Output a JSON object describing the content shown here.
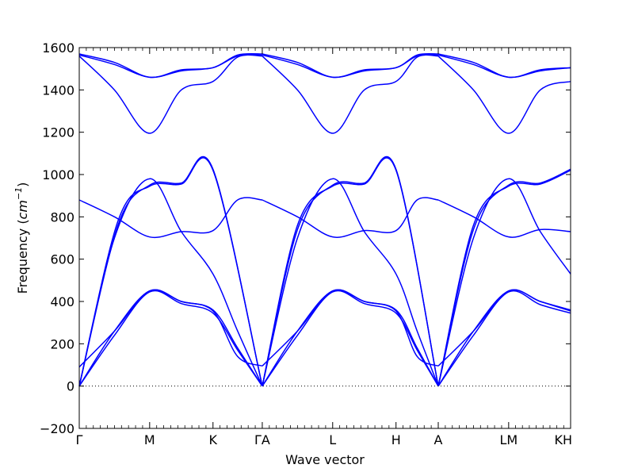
{
  "chart_data": {
    "type": "line",
    "title": "",
    "xlabel": "Wave vector",
    "ylabel_text": "Frequency (",
    "ylabel_unit": "cm",
    "ylabel_exp": "−1",
    "ylabel_close": ")",
    "ylim": [
      -200,
      1600
    ],
    "y_ticks": [
      -200,
      0,
      200,
      400,
      600,
      800,
      1000,
      1200,
      1400,
      1600
    ],
    "zero_line": {
      "value": 0,
      "style": "dotted"
    },
    "xlim": [
      0,
      6.98
    ],
    "high_symmetry_points": [
      {
        "label": "Γ",
        "x": 0
      },
      {
        "label": "M",
        "x": 1.0
      },
      {
        "label": "K",
        "x": 1.9
      },
      {
        "label": "ΓA",
        "x": 2.6
      },
      {
        "label": "L",
        "x": 3.6
      },
      {
        "label": "H",
        "x": 4.5
      },
      {
        "label": "A",
        "x": 5.1
      },
      {
        "label": "LM",
        "x": 6.1
      },
      {
        "label": "KH",
        "x": 6.98
      }
    ],
    "color": "#0000ff",
    "series": [
      {
        "x": [
          0,
          0.5,
          1.0,
          1.45,
          1.9,
          2.25,
          2.6
        ],
        "values": [
          880,
          800,
          705,
          730,
          735,
          880,
          880
        ]
      },
      {
        "x": [
          0,
          0.55,
          1.0,
          1.45,
          1.9,
          2.6
        ],
        "values": [
          0,
          780,
          945,
          955,
          1020,
          0
        ]
      },
      {
        "x": [
          0,
          0.55,
          1.0,
          1.45,
          1.9,
          2.6
        ],
        "values": [
          0,
          760,
          950,
          960,
          1025,
          0
        ]
      },
      {
        "x": [
          0,
          0.5,
          1.0,
          1.45,
          1.9,
          2.25,
          2.6
        ],
        "values": [
          0,
          700,
          980,
          730,
          530,
          260,
          0
        ]
      },
      {
        "x": [
          0,
          0.5,
          1.0,
          1.45,
          1.9,
          2.25,
          2.6
        ],
        "values": [
          0,
          260,
          450,
          400,
          360,
          180,
          0
        ]
      },
      {
        "x": [
          0,
          0.5,
          1.0,
          1.45,
          1.9,
          2.25,
          2.6
        ],
        "values": [
          0,
          240,
          445,
          390,
          345,
          170,
          0
        ]
      },
      {
        "x": [
          0,
          0.5,
          1.0,
          1.45,
          1.9,
          2.25,
          2.6
        ],
        "values": [
          90,
          260,
          450,
          400,
          355,
          140,
          95
        ]
      },
      {
        "x": [
          0,
          0.5,
          1.0,
          1.45,
          1.9,
          2.25,
          2.6
        ],
        "values": [
          1565,
          1520,
          1460,
          1490,
          1505,
          1560,
          1565
        ]
      },
      {
        "x": [
          0,
          0.5,
          1.0,
          1.45,
          1.9,
          2.25,
          2.6
        ],
        "values": [
          1570,
          1530,
          1460,
          1495,
          1505,
          1565,
          1570
        ]
      },
      {
        "x": [
          0,
          0.5,
          1.0,
          1.45,
          1.9,
          2.25,
          2.6
        ],
        "values": [
          1560,
          1400,
          1195,
          1400,
          1440,
          1555,
          1560
        ]
      },
      {
        "x": [
          2.6,
          3.1,
          3.6,
          4.05,
          4.5,
          4.8,
          5.1
        ],
        "values": [
          880,
          800,
          705,
          735,
          735,
          880,
          880
        ]
      },
      {
        "x": [
          2.6,
          3.1,
          3.6,
          4.05,
          4.5,
          5.1
        ],
        "values": [
          0,
          760,
          945,
          955,
          1020,
          0
        ]
      },
      {
        "x": [
          2.6,
          3.1,
          3.6,
          4.05,
          4.5,
          5.1
        ],
        "values": [
          0,
          740,
          950,
          960,
          1025,
          0
        ]
      },
      {
        "x": [
          2.6,
          3.1,
          3.6,
          4.05,
          4.5,
          4.8,
          5.1
        ],
        "values": [
          0,
          700,
          980,
          730,
          530,
          260,
          0
        ]
      },
      {
        "x": [
          2.6,
          3.1,
          3.6,
          4.05,
          4.5,
          4.8,
          5.1
        ],
        "values": [
          0,
          260,
          450,
          400,
          360,
          180,
          0
        ]
      },
      {
        "x": [
          2.6,
          3.1,
          3.6,
          4.05,
          4.5,
          4.8,
          5.1
        ],
        "values": [
          0,
          240,
          445,
          390,
          345,
          170,
          0
        ]
      },
      {
        "x": [
          2.6,
          3.1,
          3.6,
          4.05,
          4.5,
          4.8,
          5.1
        ],
        "values": [
          95,
          260,
          450,
          400,
          355,
          140,
          95
        ]
      },
      {
        "x": [
          2.6,
          3.1,
          3.6,
          4.05,
          4.5,
          4.8,
          5.1
        ],
        "values": [
          1565,
          1520,
          1460,
          1490,
          1505,
          1560,
          1565
        ]
      },
      {
        "x": [
          2.6,
          3.1,
          3.6,
          4.05,
          4.5,
          4.8,
          5.1
        ],
        "values": [
          1570,
          1530,
          1460,
          1495,
          1505,
          1565,
          1570
        ]
      },
      {
        "x": [
          2.6,
          3.1,
          3.6,
          4.05,
          4.5,
          4.8,
          5.1
        ],
        "values": [
          1560,
          1400,
          1195,
          1400,
          1440,
          1555,
          1560
        ]
      },
      {
        "x": [
          5.1,
          5.6,
          6.1,
          6.55,
          6.98
        ],
        "values": [
          880,
          800,
          705,
          740,
          730
        ]
      },
      {
        "x": [
          5.1,
          5.6,
          6.1,
          6.55,
          6.98
        ],
        "values": [
          0,
          760,
          945,
          955,
          1020
        ]
      },
      {
        "x": [
          5.1,
          5.6,
          6.1,
          6.55,
          6.98
        ],
        "values": [
          0,
          740,
          950,
          960,
          1025
        ]
      },
      {
        "x": [
          5.1,
          5.6,
          6.1,
          6.55,
          6.98
        ],
        "values": [
          0,
          700,
          980,
          730,
          530
        ]
      },
      {
        "x": [
          5.1,
          5.6,
          6.1,
          6.55,
          6.98
        ],
        "values": [
          0,
          260,
          450,
          400,
          360
        ]
      },
      {
        "x": [
          5.1,
          5.6,
          6.1,
          6.55,
          6.98
        ],
        "values": [
          0,
          240,
          445,
          385,
          345
        ]
      },
      {
        "x": [
          5.1,
          5.6,
          6.1,
          6.55,
          6.98
        ],
        "values": [
          95,
          260,
          450,
          400,
          355
        ]
      },
      {
        "x": [
          5.1,
          5.6,
          6.1,
          6.55,
          6.98
        ],
        "values": [
          1565,
          1520,
          1460,
          1490,
          1505
        ]
      },
      {
        "x": [
          5.1,
          5.6,
          6.1,
          6.55,
          6.98
        ],
        "values": [
          1570,
          1530,
          1460,
          1495,
          1505
        ]
      },
      {
        "x": [
          5.1,
          5.6,
          6.1,
          6.55,
          6.98
        ],
        "values": [
          1560,
          1400,
          1195,
          1400,
          1440
        ]
      }
    ]
  }
}
